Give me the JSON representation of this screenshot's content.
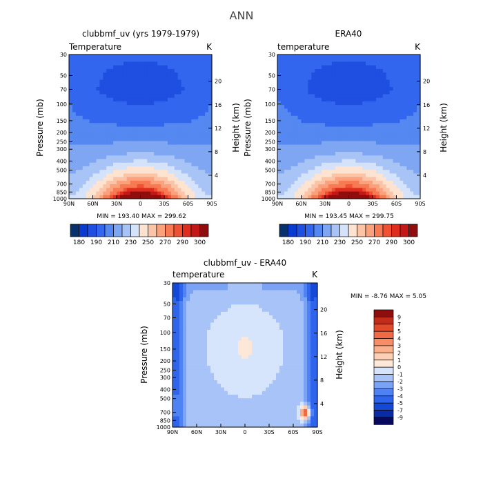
{
  "figure": {
    "title": "ANN"
  },
  "colors": {
    "temperature_levels": [
      "#08306b",
      "#0a3bd0",
      "#1f4fe0",
      "#3366ee",
      "#5588f0",
      "#7ea6f3",
      "#a8c4f6",
      "#d4e2fa",
      "#fde3d0",
      "#fcc4a6",
      "#fba27c",
      "#f77a55",
      "#ef5132",
      "#de2d1c",
      "#c21818",
      "#8f0d0d"
    ],
    "difference_levels": [
      "#08085c",
      "#0a2ba8",
      "#1449d8",
      "#2f64ec",
      "#4f82f2",
      "#7aa2f5",
      "#a7c3f8",
      "#d6e5fb",
      "#fde8d8",
      "#fbd0b6",
      "#f9b08c",
      "#f68d66",
      "#f06a46",
      "#e14b2c",
      "#c22c1a",
      "#8e0e0e"
    ]
  },
  "chart_data": [
    {
      "type": "heatmap",
      "title": "clubbmf_uv (yrs 1979-1979)",
      "subtitle": "Temperature",
      "units": "K",
      "xlabel": "",
      "ylabel": "Pressure (mb)",
      "y2label": "Height (km)",
      "x_ticks": [
        "90N",
        "60N",
        "30N",
        "0",
        "30S",
        "60S",
        "90S"
      ],
      "y_ticks": [
        "30",
        "50",
        "70",
        "100",
        "150",
        "200",
        "250",
        "300",
        "400",
        "500",
        "700",
        "850",
        "1000"
      ],
      "y2_ticks": [
        "20",
        "16",
        "12",
        "8",
        "4"
      ],
      "min_max_text": "MIN = 193.40   MAX = 299.62",
      "colorbar_labels": [
        "180",
        "190",
        "210",
        "230",
        "250",
        "270",
        "290",
        "300"
      ],
      "min": 193.4,
      "max": 299.62
    },
    {
      "type": "heatmap",
      "title": "ERA40",
      "subtitle": "temperature",
      "units": "K",
      "xlabel": "",
      "ylabel": "Pressure (mb)",
      "y2label": "Height (km)",
      "x_ticks": [
        "90N",
        "60N",
        "30N",
        "0",
        "30S",
        "60S",
        "90S"
      ],
      "y_ticks": [
        "30",
        "50",
        "70",
        "100",
        "150",
        "200",
        "250",
        "300",
        "400",
        "500",
        "700",
        "850",
        "1000"
      ],
      "y2_ticks": [
        "20",
        "16",
        "12",
        "8",
        "4"
      ],
      "min_max_text": "MIN = 193.45   MAX = 299.75",
      "colorbar_labels": [
        "180",
        "190",
        "210",
        "230",
        "250",
        "270",
        "290",
        "300"
      ],
      "min": 193.45,
      "max": 299.75
    },
    {
      "type": "heatmap",
      "title": "clubbmf_uv - ERA40",
      "subtitle": "temperature",
      "units": "K",
      "xlabel": "",
      "ylabel": "Pressure (mb)",
      "y2label": "Height (km)",
      "x_ticks": [
        "90N",
        "60N",
        "30N",
        "0",
        "30S",
        "60S",
        "90S"
      ],
      "y_ticks": [
        "30",
        "50",
        "70",
        "100",
        "150",
        "200",
        "250",
        "300",
        "400",
        "500",
        "700",
        "850",
        "1000"
      ],
      "y2_ticks": [
        "20",
        "16",
        "12",
        "8",
        "4"
      ],
      "min_max_text": "MIN =   -8.76   MAX =    5.05",
      "colorbar_labels": [
        "9",
        "7",
        "5",
        "4",
        "3",
        "2",
        "1",
        "0",
        "-1",
        "-2",
        "-3",
        "-4",
        "-5",
        "-7",
        "-9"
      ],
      "min": -8.76,
      "max": 5.05
    }
  ]
}
